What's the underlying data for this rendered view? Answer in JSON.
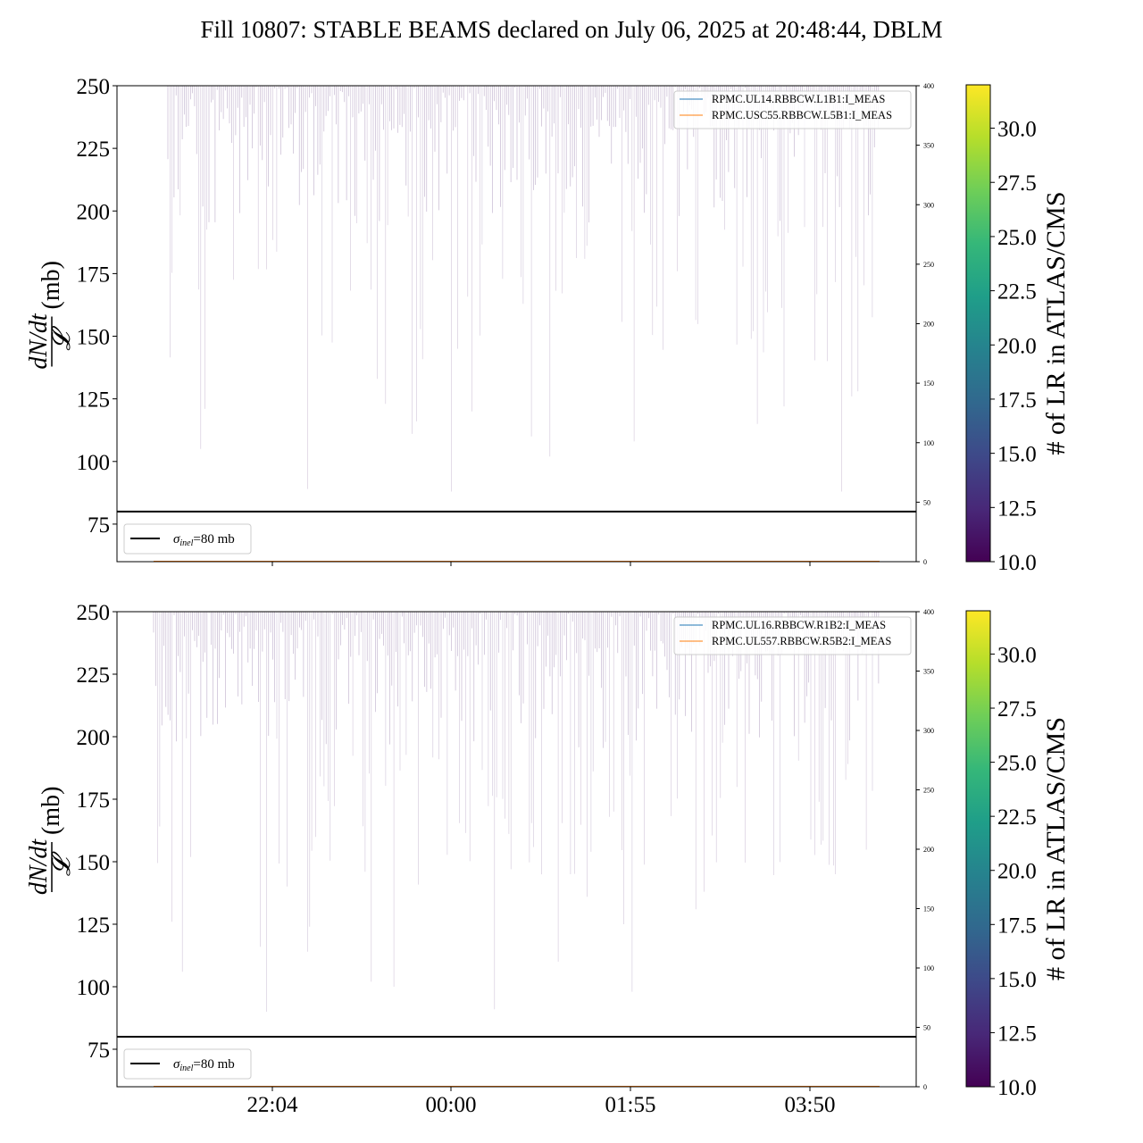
{
  "title": "Fill 10807: STABLE BEAMS declared on July 06, 2025 at 20:48:44, DBLM",
  "chart_data": [
    {
      "type": "line",
      "panel": "top",
      "ylabel": "dN/dt / 𝓛 (mb)",
      "ylim": [
        60,
        250
      ],
      "yticks": [
        75,
        100,
        125,
        150,
        175,
        200,
        225,
        250
      ],
      "y2lim": [
        0,
        400
      ],
      "y2ticks": [
        0,
        50,
        100,
        150,
        200,
        250,
        300,
        350,
        400
      ],
      "xticks": [
        "22:04",
        "00:00",
        "01:55",
        "03:50"
      ],
      "show_xtick_labels": false,
      "series": [
        {
          "name": "RPMC.UL14.RBBCW.L1B1:I_MEAS",
          "color": "#1f77b4",
          "axis": "right",
          "values_approx": 0
        },
        {
          "name": "RPMC.USC55.RBBCW.L5B1:I_MEAS",
          "color": "#ff7f0e",
          "axis": "right",
          "values_approx": 0
        }
      ],
      "reference_line": {
        "label": "σinel=80 mb",
        "label_main": "σ",
        "label_sub": "inel",
        "label_rest": "=80 mb",
        "value": 80,
        "color": "#000000"
      },
      "spikes": {
        "color": "#7b5b95",
        "note": "dense vertical spikes hanging down from 250 mb",
        "time_range": [
          "20:50",
          "04:35"
        ],
        "min_values": [
          105,
          121,
          89,
          133,
          123,
          111,
          116,
          88,
          120,
          110,
          102,
          108,
          115,
          122,
          88,
          126,
          128,
          89,
          130,
          104,
          142
        ]
      }
    },
    {
      "type": "line",
      "panel": "bottom",
      "ylabel": "dN/dt / 𝓛 (mb)",
      "ylim": [
        60,
        250
      ],
      "yticks": [
        75,
        100,
        125,
        150,
        175,
        200,
        225,
        250
      ],
      "y2lim": [
        0,
        400
      ],
      "y2ticks": [
        0,
        50,
        100,
        150,
        200,
        250,
        300,
        350,
        400
      ],
      "xticks": [
        "22:04",
        "00:00",
        "01:55",
        "03:50"
      ],
      "show_xtick_labels": true,
      "series": [
        {
          "name": "RPMC.UL16.RBBCW.R1B2:I_MEAS",
          "color": "#1f77b4",
          "axis": "right",
          "values_approx": 0
        },
        {
          "name": "RPMC.UL557.RBBCW.R5B2:I_MEAS",
          "color": "#ff7f0e",
          "axis": "right",
          "values_approx": 0
        }
      ],
      "reference_line": {
        "label": "σinel=80 mb",
        "label_main": "σ",
        "label_sub": "inel",
        "label_rest": "=80 mb",
        "value": 80,
        "color": "#000000"
      },
      "spikes": {
        "color": "#7b5b95",
        "note": "dense vertical spikes hanging down from 250 mb",
        "time_range": [
          "20:40",
          "04:35"
        ],
        "min_values": [
          126,
          106,
          116,
          90,
          114,
          124,
          146,
          102,
          100,
          91,
          110,
          145,
          136,
          125,
          98,
          131,
          138,
          145,
          120,
          140
        ]
      }
    }
  ],
  "colorbar": {
    "label": "# of LR in ATLAS/CMS",
    "range": [
      10,
      32
    ],
    "ticks": [
      "10.0",
      "12.5",
      "15.0",
      "17.5",
      "20.0",
      "22.5",
      "25.0",
      "27.5",
      "30.0"
    ],
    "colormap": "viridis",
    "stops": [
      "#440154",
      "#482878",
      "#3e4989",
      "#31688e",
      "#26828e",
      "#1f9e89",
      "#35b779",
      "#6ece58",
      "#b5de2b",
      "#fde725"
    ]
  }
}
